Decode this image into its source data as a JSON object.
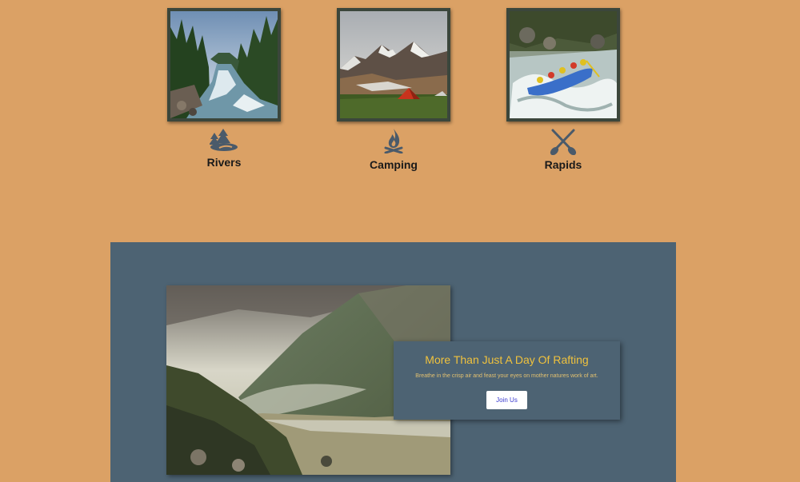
{
  "features": [
    {
      "label": "Rivers",
      "icon": "forest-river-icon",
      "photo": "river-forest-photo"
    },
    {
      "label": "Camping",
      "icon": "campfire-icon",
      "photo": "mountain-camp-photo"
    },
    {
      "label": "Rapids",
      "icon": "crossed-paddles-icon",
      "photo": "rafting-rapids-photo"
    }
  ],
  "promo": {
    "title": "More Than Just A Day Of Rafting",
    "subtitle": "Breathe in the crisp air and feast your eyes on mother natures work of art.",
    "button_label": "Join Us"
  },
  "colors": {
    "page_bg": "#dba165",
    "frame": "#3b463b",
    "icon": "#4a5a6a",
    "promo_bg": "#4d6373",
    "promo_title": "#f0c23d",
    "button_text": "#3a3ad0"
  }
}
